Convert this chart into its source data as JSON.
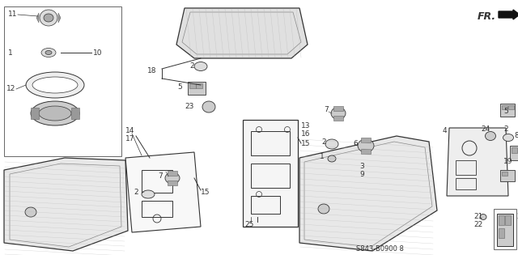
{
  "bg_color": "#ffffff",
  "diagram_color": "#333333",
  "part_code": "S843-B0900 8",
  "fr_text": "FR.",
  "font_size": 6.5,
  "line_width": 0.7
}
